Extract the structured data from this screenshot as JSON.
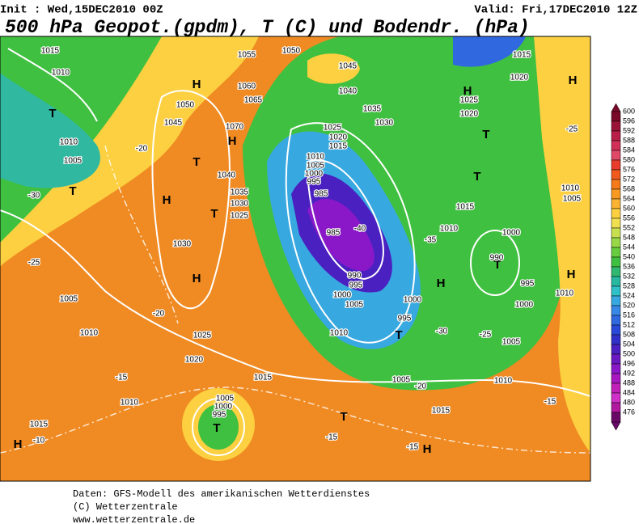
{
  "header": {
    "init": "Init : Wed,15DEC2010 00Z",
    "valid": "Valid: Fri,17DEC2010 12Z",
    "title": "500 hPa Geopot.(gpdm), T (C) und Bodendr. (hPa)"
  },
  "colorbar": {
    "ticks": [
      600,
      596,
      592,
      588,
      584,
      580,
      576,
      572,
      568,
      564,
      560,
      556,
      552,
      548,
      544,
      540,
      536,
      532,
      528,
      524,
      520,
      516,
      512,
      508,
      504,
      500,
      496,
      492,
      488,
      484,
      480,
      476
    ],
    "colors": [
      "#7a0a28",
      "#9a1438",
      "#b81e48",
      "#d03058",
      "#e04868",
      "#e83c2c",
      "#f05a1e",
      "#f47a1c",
      "#f89a22",
      "#fab432",
      "#fcd040",
      "#f0e050",
      "#c8e050",
      "#98d848",
      "#68cc40",
      "#40c040",
      "#30b870",
      "#28b8a0",
      "#30c0c8",
      "#38a8e0",
      "#3888e8",
      "#3068e0",
      "#2848d8",
      "#3030c8",
      "#4a20c0",
      "#6a18c0",
      "#8a18c8",
      "#a818c0",
      "#c020b8",
      "#d030c8",
      "#b018a0",
      "#6a0868"
    ]
  },
  "map": {
    "labels": [
      "1015",
      "1010",
      "1010",
      "1005",
      "T",
      "T",
      "H",
      "H",
      "T",
      "T",
      "H",
      "1030",
      "1025",
      "1020",
      "1015",
      "1010",
      "1005",
      "1000",
      "995",
      "T",
      "H",
      "1015",
      "1005",
      "1010",
      "1050",
      "1045",
      "1055",
      "1060",
      "1065",
      "1070",
      "H",
      "1040",
      "1035",
      "1030",
      "1025",
      "1050",
      "1045",
      "1040",
      "1035",
      "1030",
      "1025",
      "1020",
      "1015",
      "1010",
      "1005",
      "1000",
      "995",
      "985",
      "985",
      "990",
      "995",
      "1000",
      "1005",
      "1010",
      "1005",
      "1000",
      "995",
      "H",
      "T",
      "1015",
      "1010",
      "1020",
      "1025",
      "H",
      "T",
      "T",
      "1020",
      "1015",
      "H",
      "T",
      "990",
      "1000",
      "995",
      "1000",
      "1005",
      "H",
      "1010",
      "1010",
      "1005",
      "1010",
      "1015",
      "T",
      "H",
      "-20",
      "-30",
      "-25",
      "-20",
      "-15",
      "-10",
      "-40",
      "-35",
      "-30",
      "-25",
      "-25",
      "-20",
      "-15",
      "-15",
      "-15"
    ]
  },
  "footer": {
    "lines": [
      "Daten: GFS-Modell des amerikanischen Wetterdienstes",
      "(C) Wetterzentrale",
      "www.wetterzentrale.de"
    ]
  }
}
